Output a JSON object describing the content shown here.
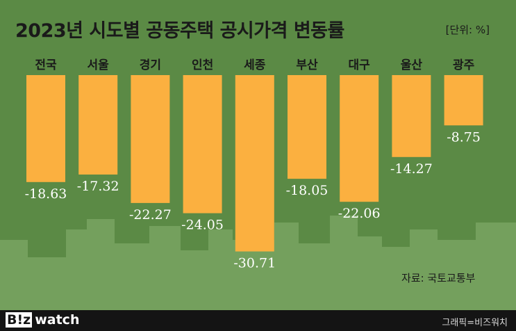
{
  "chart_data": {
    "type": "bar",
    "title": "2023년 시도별 공동주택 공시가격 변동률",
    "unit_label": "[단위: %]",
    "categories": [
      "전국",
      "서울",
      "경기",
      "인천",
      "세종",
      "부산",
      "대구",
      "울산",
      "광주"
    ],
    "values": [
      -18.63,
      -17.32,
      -22.27,
      -24.05,
      -30.71,
      -18.05,
      -22.06,
      -14.27,
      -8.75
    ],
    "value_labels": [
      "-18.63",
      "-17.32",
      "-22.27",
      "-24.05",
      "-30.71",
      "-18.05",
      "-22.06",
      "-14.27",
      "-8.75"
    ],
    "ylim": [
      -31,
      0
    ],
    "xlabel": "",
    "ylabel": "",
    "grid": false,
    "source": "자료: 국토교통부",
    "colors": {
      "bar": "#fbb040",
      "background": "#5b8a45",
      "skyline": "#74a05d",
      "text": "#1a1a1a"
    }
  },
  "footer": {
    "logo_box": "B!z",
    "logo_text": "watch",
    "credit": "그래픽=비즈워치"
  }
}
